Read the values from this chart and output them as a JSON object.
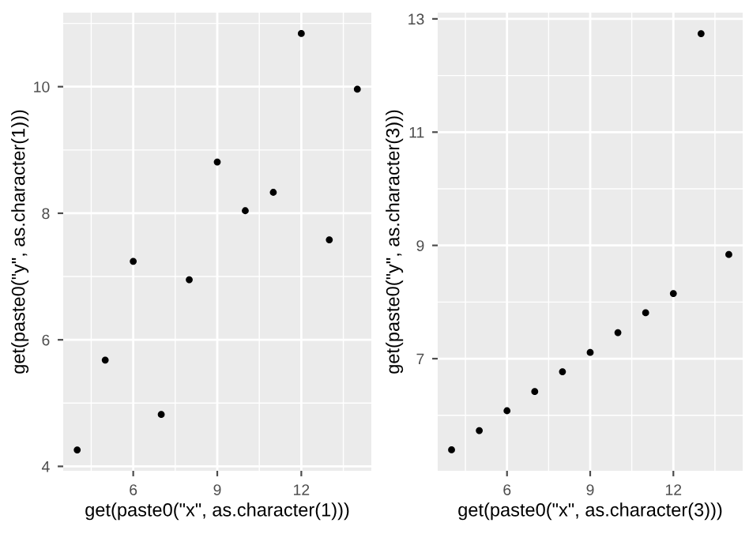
{
  "chart_data": [
    {
      "type": "scatter",
      "xlabel": "get(paste0(\"x\", as.character(1)))",
      "ylabel": "get(paste0(\"y\", as.character(1)))",
      "x": [
        10,
        8,
        13,
        9,
        11,
        14,
        6,
        4,
        12,
        7,
        5
      ],
      "values": [
        8.04,
        6.95,
        7.58,
        8.81,
        8.33,
        9.96,
        7.24,
        4.26,
        10.84,
        4.82,
        5.68
      ],
      "color": "#000000",
      "marker": "circle",
      "grid": true,
      "xlim": [
        3.5,
        14.5
      ],
      "xticks": [
        6,
        9,
        12
      ],
      "ylim": [
        3.93,
        11.17
      ],
      "yticks": [
        4,
        6,
        8,
        10
      ]
    },
    {
      "type": "scatter",
      "xlabel": "get(paste0(\"x\", as.character(3)))",
      "ylabel": "get(paste0(\"y\", as.character(3)))",
      "x": [
        10,
        8,
        13,
        9,
        11,
        14,
        6,
        4,
        12,
        7,
        5
      ],
      "values": [
        7.46,
        6.77,
        12.74,
        7.11,
        7.81,
        8.84,
        6.08,
        5.39,
        8.15,
        6.42,
        5.73
      ],
      "color": "#000000",
      "marker": "circle",
      "grid": true,
      "xlim": [
        3.5,
        14.5
      ],
      "xticks": [
        6,
        9,
        12
      ],
      "ylim": [
        5.02,
        13.11
      ],
      "yticks": [
        7,
        9,
        11,
        13
      ]
    }
  ]
}
